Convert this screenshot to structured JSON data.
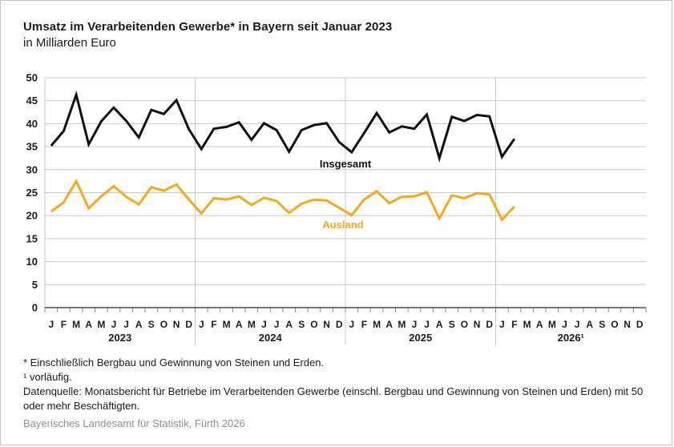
{
  "header": {
    "title": "Umsatz im Verarbeitenden Gewerbe* in Bayern seit Januar 2023",
    "subtitle": "in Milliarden Euro"
  },
  "footnotes": {
    "line1": "* Einschließlich Bergbau und Gewinnung von Steinen und Erden.",
    "line2": "¹ vorläufig.",
    "line3": "Datenquelle: Monatsbericht für Betriebe im Verarbeitenden Gewerbe (einschl. Bergbau und Gewinnung von Steinen und Erden) mit 50 oder mehr Beschäftigten."
  },
  "source": "Bayerisches Landesamt für Statistik, Fürth 2026",
  "colors": {
    "insgesamt": "#111111",
    "ausland": "#f5a81c",
    "grid": "#c8c8c8",
    "axis": "#4a4a4a",
    "tick": "#8a8a8a",
    "text": "#1a1a1a"
  },
  "chart_data": {
    "type": "line",
    "title": "Umsatz im Verarbeitenden Gewerbe in Bayern seit Januar 2023",
    "ylabel": "Milliarden Euro",
    "ylim": [
      0,
      50
    ],
    "ytick_step": 5,
    "grid": true,
    "legend_position": "inline-labels",
    "month_labels": [
      "J",
      "F",
      "M",
      "A",
      "M",
      "J",
      "J",
      "A",
      "S",
      "O",
      "N",
      "D"
    ],
    "years": [
      "2023",
      "2024",
      "2025",
      "2026¹"
    ],
    "series": [
      {
        "name": "Insgesamt",
        "color": "#111111",
        "values": [
          35.2,
          38.4,
          46.3,
          35.5,
          40.5,
          43.5,
          40.6,
          37.0,
          43.0,
          42.1,
          45.1,
          38.8,
          34.5,
          38.9,
          39.3,
          40.3,
          36.5,
          40.1,
          38.6,
          33.9,
          38.6,
          39.7,
          40.1,
          36.0,
          33.8,
          38.0,
          42.3,
          38.1,
          39.4,
          38.9,
          42.0,
          32.5,
          41.5,
          40.6,
          41.9,
          41.6,
          32.8,
          36.7
        ]
      },
      {
        "name": "Ausland",
        "color": "#f5a81c",
        "values": [
          20.9,
          22.9,
          27.5,
          21.6,
          24.2,
          26.4,
          24.1,
          22.4,
          26.2,
          25.4,
          26.8,
          23.5,
          20.5,
          23.8,
          23.5,
          24.2,
          22.3,
          23.9,
          23.2,
          20.6,
          22.6,
          23.5,
          23.3,
          21.7,
          20.1,
          23.5,
          25.3,
          22.7,
          24.1,
          24.2,
          25.1,
          19.4,
          24.4,
          23.8,
          24.9,
          24.6,
          19.1,
          22.0
        ]
      }
    ]
  }
}
